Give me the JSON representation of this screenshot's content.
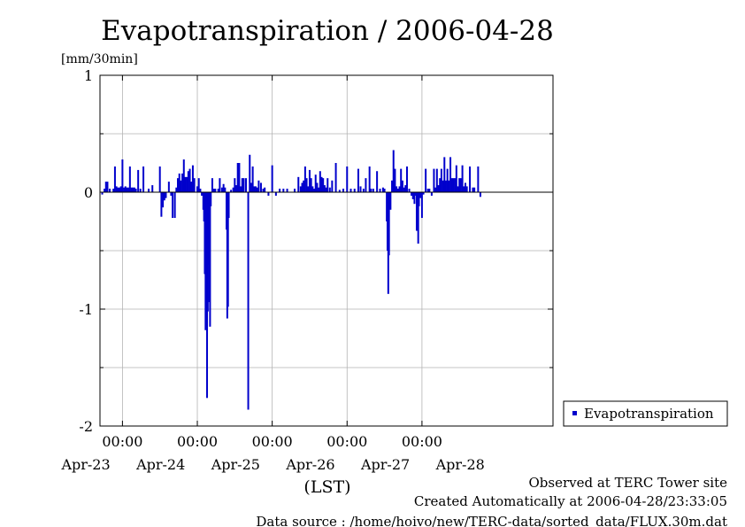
{
  "chart_data": {
    "type": "bar",
    "title": "Evapotranspiration / 2006-04-28",
    "unit_label": "[mm/30min]",
    "xlabel": "(LST)",
    "ylim": [
      -2,
      1
    ],
    "y_ticks": [
      "1",
      "0",
      "-1",
      "-2"
    ],
    "y_tick_values": [
      1,
      0,
      -1,
      -2
    ],
    "x_range_days": [
      -0.3,
      5.75
    ],
    "time_ticks": [
      "00:00",
      "00:00",
      "00:00",
      "00:00",
      "00:00"
    ],
    "time_tick_days": [
      0,
      1,
      2,
      3,
      4
    ],
    "date_labels": [
      "Apr-23",
      "Apr-24",
      "Apr-25",
      "Apr-26",
      "Apr-27",
      "Apr-28"
    ],
    "date_label_days": [
      -0.5,
      0.5,
      1.5,
      2.5,
      3.5,
      4.5
    ],
    "series": [
      {
        "name": "Evapotranspiration",
        "color": "#0000cc",
        "points": [
          [
            -0.27,
            -0.02
          ],
          [
            -0.24,
            0.03
          ],
          [
            -0.22,
            0.09
          ],
          [
            -0.2,
            0.09
          ],
          [
            -0.17,
            0.03
          ],
          [
            -0.12,
            0.03
          ],
          [
            -0.1,
            0.22
          ],
          [
            -0.08,
            0.05
          ],
          [
            -0.06,
            0.04
          ],
          [
            -0.04,
            0.04
          ],
          [
            -0.02,
            0.05
          ],
          [
            0.0,
            0.28
          ],
          [
            0.02,
            0.04
          ],
          [
            0.04,
            0.05
          ],
          [
            0.06,
            0.04
          ],
          [
            0.08,
            0.04
          ],
          [
            0.1,
            0.22
          ],
          [
            0.12,
            0.04
          ],
          [
            0.14,
            0.04
          ],
          [
            0.16,
            0.04
          ],
          [
            0.18,
            0.03
          ],
          [
            0.21,
            0.19
          ],
          [
            0.24,
            0.03
          ],
          [
            0.28,
            0.22
          ],
          [
            0.35,
            0.03
          ],
          [
            0.4,
            0.06
          ],
          [
            0.5,
            0.22
          ],
          [
            0.52,
            -0.21
          ],
          [
            0.54,
            -0.13
          ],
          [
            0.56,
            -0.07
          ],
          [
            0.58,
            -0.05
          ],
          [
            0.62,
            0.09
          ],
          [
            0.65,
            -0.03
          ],
          [
            0.67,
            -0.22
          ],
          [
            0.7,
            -0.22
          ],
          [
            0.72,
            0.04
          ],
          [
            0.74,
            0.12
          ],
          [
            0.76,
            0.16
          ],
          [
            0.78,
            0.1
          ],
          [
            0.8,
            0.16
          ],
          [
            0.82,
            0.28
          ],
          [
            0.84,
            0.13
          ],
          [
            0.86,
            0.13
          ],
          [
            0.88,
            0.18
          ],
          [
            0.9,
            0.2
          ],
          [
            0.92,
            0.09
          ],
          [
            0.94,
            0.23
          ],
          [
            0.96,
            0.12
          ],
          [
            1.0,
            0.05
          ],
          [
            1.02,
            0.12
          ],
          [
            1.04,
            0.03
          ],
          [
            1.06,
            -0.03
          ],
          [
            1.08,
            -0.15
          ],
          [
            1.09,
            -0.25
          ],
          [
            1.1,
            -0.7
          ],
          [
            1.11,
            -1.18
          ],
          [
            1.12,
            -0.77
          ],
          [
            1.13,
            -1.76
          ],
          [
            1.14,
            -1.02
          ],
          [
            1.15,
            -0.62
          ],
          [
            1.16,
            -0.94
          ],
          [
            1.17,
            -1.15
          ],
          [
            1.18,
            -0.12
          ],
          [
            1.2,
            0.12
          ],
          [
            1.22,
            0.03
          ],
          [
            1.24,
            0.03
          ],
          [
            1.28,
            0.03
          ],
          [
            1.3,
            0.12
          ],
          [
            1.33,
            0.04
          ],
          [
            1.35,
            0.07
          ],
          [
            1.37,
            0.04
          ],
          [
            1.39,
            -0.32
          ],
          [
            1.4,
            -1.08
          ],
          [
            1.41,
            -0.98
          ],
          [
            1.42,
            -0.22
          ],
          [
            1.45,
            0.02
          ],
          [
            1.48,
            0.04
          ],
          [
            1.5,
            0.12
          ],
          [
            1.52,
            0.06
          ],
          [
            1.54,
            0.25
          ],
          [
            1.56,
            0.25
          ],
          [
            1.58,
            0.05
          ],
          [
            1.6,
            0.12
          ],
          [
            1.62,
            0.12
          ],
          [
            1.65,
            0.12
          ],
          [
            1.68,
            -1.86
          ],
          [
            1.7,
            0.32
          ],
          [
            1.72,
            0.08
          ],
          [
            1.74,
            0.22
          ],
          [
            1.76,
            0.05
          ],
          [
            1.78,
            0.05
          ],
          [
            1.8,
            0.04
          ],
          [
            1.82,
            0.1
          ],
          [
            1.85,
            0.08
          ],
          [
            1.88,
            0.03
          ],
          [
            1.9,
            0.04
          ],
          [
            1.95,
            -0.03
          ],
          [
            2.0,
            0.23
          ],
          [
            2.05,
            -0.03
          ],
          [
            2.1,
            0.03
          ],
          [
            2.15,
            0.03
          ],
          [
            2.2,
            0.03
          ],
          [
            2.3,
            0.03
          ],
          [
            2.35,
            0.13
          ],
          [
            2.38,
            0.05
          ],
          [
            2.4,
            0.08
          ],
          [
            2.42,
            0.1
          ],
          [
            2.44,
            0.22
          ],
          [
            2.46,
            0.12
          ],
          [
            2.48,
            0.05
          ],
          [
            2.5,
            0.19
          ],
          [
            2.52,
            0.12
          ],
          [
            2.54,
            0.05
          ],
          [
            2.56,
            0.03
          ],
          [
            2.58,
            0.15
          ],
          [
            2.6,
            0.08
          ],
          [
            2.62,
            0.04
          ],
          [
            2.64,
            0.18
          ],
          [
            2.66,
            0.13
          ],
          [
            2.68,
            0.12
          ],
          [
            2.7,
            0.06
          ],
          [
            2.72,
            0.04
          ],
          [
            2.74,
            0.12
          ],
          [
            2.77,
            0.04
          ],
          [
            2.8,
            0.1
          ],
          [
            2.85,
            0.25
          ],
          [
            2.9,
            0.02
          ],
          [
            2.95,
            0.03
          ],
          [
            3.0,
            0.22
          ],
          [
            3.05,
            0.03
          ],
          [
            3.1,
            0.03
          ],
          [
            3.15,
            0.2
          ],
          [
            3.18,
            0.05
          ],
          [
            3.22,
            0.03
          ],
          [
            3.25,
            0.12
          ],
          [
            3.3,
            0.22
          ],
          [
            3.32,
            0.03
          ],
          [
            3.35,
            0.03
          ],
          [
            3.4,
            0.18
          ],
          [
            3.44,
            0.03
          ],
          [
            3.48,
            0.04
          ],
          [
            3.5,
            0.03
          ],
          [
            3.53,
            -0.25
          ],
          [
            3.54,
            -0.5
          ],
          [
            3.55,
            -0.87
          ],
          [
            3.56,
            -0.54
          ],
          [
            3.58,
            -0.15
          ],
          [
            3.6,
            0.1
          ],
          [
            3.62,
            0.36
          ],
          [
            3.64,
            0.2
          ],
          [
            3.66,
            0.05
          ],
          [
            3.68,
            0.03
          ],
          [
            3.7,
            0.05
          ],
          [
            3.72,
            0.2
          ],
          [
            3.74,
            0.1
          ],
          [
            3.76,
            0.04
          ],
          [
            3.78,
            0.06
          ],
          [
            3.8,
            0.22
          ],
          [
            3.83,
            0.03
          ],
          [
            3.86,
            -0.03
          ],
          [
            3.88,
            -0.06
          ],
          [
            3.9,
            -0.1
          ],
          [
            3.92,
            -0.03
          ],
          [
            3.93,
            -0.33
          ],
          [
            3.94,
            -0.19
          ],
          [
            3.95,
            -0.44
          ],
          [
            3.96,
            -0.12
          ],
          [
            3.98,
            -0.05
          ],
          [
            4.0,
            -0.22
          ],
          [
            4.02,
            -0.02
          ],
          [
            4.05,
            0.2
          ],
          [
            4.08,
            0.03
          ],
          [
            4.1,
            0.03
          ],
          [
            4.13,
            -0.03
          ],
          [
            4.16,
            0.2
          ],
          [
            4.18,
            0.04
          ],
          [
            4.2,
            0.2
          ],
          [
            4.22,
            0.06
          ],
          [
            4.24,
            0.12
          ],
          [
            4.26,
            0.2
          ],
          [
            4.28,
            0.1
          ],
          [
            4.3,
            0.3
          ],
          [
            4.32,
            0.1
          ],
          [
            4.34,
            0.2
          ],
          [
            4.36,
            0.1
          ],
          [
            4.38,
            0.3
          ],
          [
            4.4,
            0.12
          ],
          [
            4.42,
            0.12
          ],
          [
            4.44,
            0.12
          ],
          [
            4.46,
            0.23
          ],
          [
            4.48,
            0.05
          ],
          [
            4.5,
            0.12
          ],
          [
            4.52,
            0.12
          ],
          [
            4.54,
            0.23
          ],
          [
            4.56,
            0.05
          ],
          [
            4.58,
            0.08
          ],
          [
            4.6,
            0.05
          ],
          [
            4.64,
            0.22
          ],
          [
            4.68,
            0.04
          ],
          [
            4.7,
            0.04
          ],
          [
            4.75,
            0.22
          ],
          [
            4.78,
            -0.04
          ]
        ]
      }
    ],
    "grid": true,
    "legend": "right",
    "legend_entries": [
      "Evapotranspiration"
    ]
  },
  "footer": {
    "observed": "Observed at TERC Tower site",
    "created": "Created Automatically at 2006-04-28/23:33:05",
    "source": "Data source : /home/hoivo/new/TERC-data/sorted_data/FLUX.30m.dat"
  }
}
